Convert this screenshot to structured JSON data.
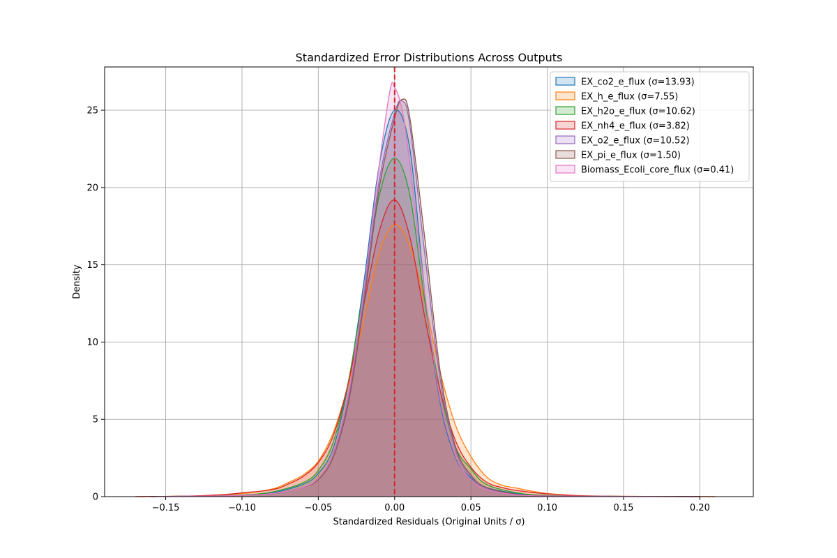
{
  "chart_data": {
    "type": "area",
    "title": "Standardized Error Distributions Across Outputs",
    "xlabel": "Standardized Residuals (Original Units / σ)",
    "ylabel": "Density",
    "xlim": [
      -0.19,
      0.235
    ],
    "ylim": [
      0,
      27.8
    ],
    "xticks": [
      -0.15,
      -0.1,
      -0.05,
      0.0,
      0.05,
      0.1,
      0.15,
      0.2
    ],
    "xtick_labels": [
      "−0.15",
      "−0.10",
      "−0.05",
      "0.00",
      "0.05",
      "0.10",
      "0.15",
      "0.20"
    ],
    "yticks": [
      0,
      5,
      10,
      15,
      20,
      25
    ],
    "ytick_labels": [
      "0",
      "5",
      "10",
      "15",
      "20",
      "25"
    ],
    "grid": true,
    "legend_position": "top-right",
    "reference_line": {
      "x": 0.0,
      "color": "#d62728",
      "style": "dashed"
    },
    "series": [
      {
        "name": "EX_co2_e_flux (σ=13.93)",
        "color": "#1f77b4",
        "points": [
          [
            -0.16,
            0
          ],
          [
            -0.12,
            0.05
          ],
          [
            -0.1,
            0.1
          ],
          [
            -0.08,
            0.25
          ],
          [
            -0.06,
            0.8
          ],
          [
            -0.05,
            1.5
          ],
          [
            -0.04,
            3.2
          ],
          [
            -0.03,
            7.5
          ],
          [
            -0.02,
            14
          ],
          [
            -0.01,
            21.5
          ],
          [
            0,
            25
          ],
          [
            0.01,
            22.5
          ],
          [
            0.02,
            13
          ],
          [
            0.03,
            6
          ],
          [
            0.04,
            2.5
          ],
          [
            0.05,
            1.2
          ],
          [
            0.06,
            0.6
          ],
          [
            0.08,
            0.2
          ],
          [
            0.1,
            0.06
          ],
          [
            0.14,
            0.02
          ],
          [
            0.2,
            0
          ]
        ]
      },
      {
        "name": "EX_h_e_flux (σ=7.55)",
        "color": "#ff7f0e",
        "points": [
          [
            -0.17,
            0
          ],
          [
            -0.13,
            0.05
          ],
          [
            -0.1,
            0.2
          ],
          [
            -0.08,
            0.5
          ],
          [
            -0.07,
            0.9
          ],
          [
            -0.06,
            1.4
          ],
          [
            -0.05,
            2.3
          ],
          [
            -0.04,
            4.2
          ],
          [
            -0.03,
            7.4
          ],
          [
            -0.02,
            11.5
          ],
          [
            -0.01,
            15.8
          ],
          [
            0,
            17.6
          ],
          [
            0.01,
            16.2
          ],
          [
            0.02,
            12.5
          ],
          [
            0.03,
            8
          ],
          [
            0.04,
            4.6
          ],
          [
            0.05,
            2.6
          ],
          [
            0.06,
            1.3
          ],
          [
            0.07,
            0.75
          ],
          [
            0.08,
            0.55
          ],
          [
            0.09,
            0.35
          ],
          [
            0.1,
            0.2
          ],
          [
            0.12,
            0.07
          ],
          [
            0.15,
            0.02
          ],
          [
            0.21,
            0
          ]
        ]
      },
      {
        "name": "EX_h2o_e_flux (σ=10.62)",
        "color": "#2ca02c",
        "points": [
          [
            -0.16,
            0
          ],
          [
            -0.12,
            0.05
          ],
          [
            -0.1,
            0.1
          ],
          [
            -0.08,
            0.3
          ],
          [
            -0.06,
            0.9
          ],
          [
            -0.05,
            1.7
          ],
          [
            -0.04,
            3.6
          ],
          [
            -0.03,
            7.6
          ],
          [
            -0.02,
            13.5
          ],
          [
            -0.01,
            19.5
          ],
          [
            0,
            21.9
          ],
          [
            0.01,
            19.5
          ],
          [
            0.02,
            12.5
          ],
          [
            0.03,
            6.8
          ],
          [
            0.04,
            3.2
          ],
          [
            0.05,
            1.8
          ],
          [
            0.06,
            0.8
          ],
          [
            0.08,
            0.25
          ],
          [
            0.1,
            0.08
          ],
          [
            0.14,
            0.02
          ],
          [
            0.2,
            0
          ]
        ]
      },
      {
        "name": "EX_nh4_e_flux (σ=3.82)",
        "color": "#d62728",
        "points": [
          [
            -0.17,
            0
          ],
          [
            -0.13,
            0.05
          ],
          [
            -0.11,
            0.15
          ],
          [
            -0.1,
            0.25
          ],
          [
            -0.08,
            0.45
          ],
          [
            -0.07,
            0.8
          ],
          [
            -0.06,
            1.3
          ],
          [
            -0.05,
            2.2
          ],
          [
            -0.04,
            4
          ],
          [
            -0.03,
            7.5
          ],
          [
            -0.02,
            12.5
          ],
          [
            -0.01,
            17.2
          ],
          [
            0,
            19.2
          ],
          [
            0.01,
            16.8
          ],
          [
            0.02,
            11.5
          ],
          [
            0.03,
            6.8
          ],
          [
            0.04,
            3.6
          ],
          [
            0.05,
            1.9
          ],
          [
            0.06,
            0.95
          ],
          [
            0.07,
            0.6
          ],
          [
            0.08,
            0.4
          ],
          [
            0.1,
            0.18
          ],
          [
            0.12,
            0.06
          ],
          [
            0.15,
            0.02
          ],
          [
            0.21,
            0
          ]
        ]
      },
      {
        "name": "EX_o2_e_flux (σ=10.52)",
        "color": "#9467bd",
        "points": [
          [
            -0.16,
            0
          ],
          [
            -0.12,
            0.04
          ],
          [
            -0.1,
            0.08
          ],
          [
            -0.08,
            0.2
          ],
          [
            -0.06,
            0.6
          ],
          [
            -0.05,
            1.2
          ],
          [
            -0.04,
            2.8
          ],
          [
            -0.03,
            6.5
          ],
          [
            -0.02,
            13
          ],
          [
            -0.01,
            20.5
          ],
          [
            0,
            24.8
          ],
          [
            0.005,
            25.6
          ],
          [
            0.01,
            24
          ],
          [
            0.02,
            15.5
          ],
          [
            0.03,
            7.5
          ],
          [
            0.04,
            3
          ],
          [
            0.05,
            1.3
          ],
          [
            0.06,
            0.55
          ],
          [
            0.08,
            0.15
          ],
          [
            0.1,
            0.05
          ],
          [
            0.14,
            0.02
          ],
          [
            0.2,
            0
          ]
        ]
      },
      {
        "name": "EX_pi_e_flux (σ=1.50)",
        "color": "#8c564b",
        "points": [
          [
            -0.16,
            0
          ],
          [
            -0.12,
            0.04
          ],
          [
            -0.1,
            0.08
          ],
          [
            -0.08,
            0.2
          ],
          [
            -0.06,
            0.6
          ],
          [
            -0.05,
            1.1
          ],
          [
            -0.04,
            2.6
          ],
          [
            -0.03,
            6.2
          ],
          [
            -0.02,
            12.6
          ],
          [
            -0.01,
            20
          ],
          [
            0,
            24.5
          ],
          [
            0.005,
            25.7
          ],
          [
            0.01,
            24.5
          ],
          [
            0.02,
            16.5
          ],
          [
            0.03,
            8
          ],
          [
            0.04,
            3.2
          ],
          [
            0.05,
            1.4
          ],
          [
            0.06,
            0.6
          ],
          [
            0.08,
            0.15
          ],
          [
            0.1,
            0.05
          ],
          [
            0.14,
            0.02
          ],
          [
            0.2,
            0
          ]
        ]
      },
      {
        "name": "Biomass_Ecoli_core_flux (σ=0.41)",
        "color": "#e377c2",
        "points": [
          [
            -0.16,
            0
          ],
          [
            -0.12,
            0.04
          ],
          [
            -0.1,
            0.08
          ],
          [
            -0.08,
            0.2
          ],
          [
            -0.06,
            0.6
          ],
          [
            -0.05,
            1.2
          ],
          [
            -0.04,
            2.9
          ],
          [
            -0.03,
            6.8
          ],
          [
            -0.02,
            13.5
          ],
          [
            -0.01,
            21.5
          ],
          [
            -0.003,
            26.3
          ],
          [
            0,
            26.5
          ],
          [
            0.005,
            25
          ],
          [
            0.01,
            21.5
          ],
          [
            0.02,
            13
          ],
          [
            0.03,
            6.2
          ],
          [
            0.04,
            2.6
          ],
          [
            0.05,
            1.1
          ],
          [
            0.06,
            0.45
          ],
          [
            0.08,
            0.12
          ],
          [
            0.1,
            0.04
          ],
          [
            0.14,
            0.02
          ],
          [
            0.2,
            0
          ]
        ]
      }
    ]
  }
}
